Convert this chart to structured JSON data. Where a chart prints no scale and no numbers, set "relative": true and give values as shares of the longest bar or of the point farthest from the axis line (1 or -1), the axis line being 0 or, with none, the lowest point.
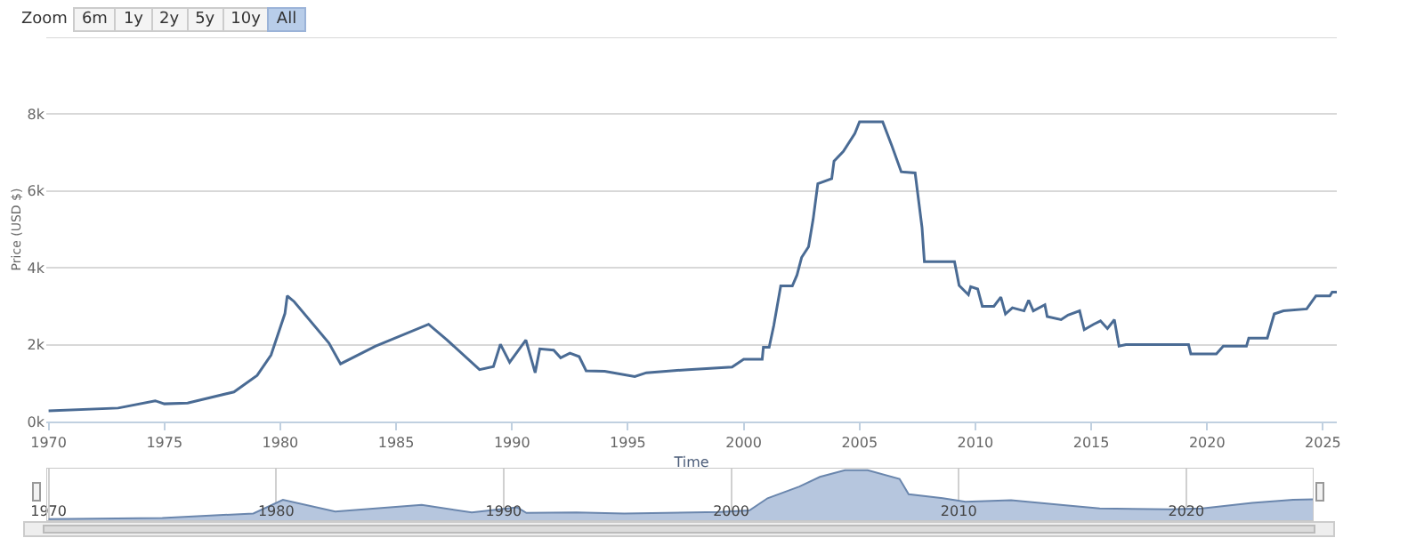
{
  "chart_data": [
    {
      "type": "line",
      "xlabel": "Time",
      "ylabel": "Price (USD $)",
      "annotations": [
        "Zoom",
        "6m",
        "1y",
        "2y",
        "5y",
        "10y",
        "All"
      ],
      "x": [
        1970,
        1973,
        1974.6,
        1975,
        1976,
        1978,
        1979,
        1979.6,
        1980.2,
        1980.3,
        1980.6,
        1982.1,
        1982.6,
        1984.1,
        1986.4,
        1987.2,
        1988.6,
        1989.2,
        1989.5,
        1989.9,
        1990.6,
        1991,
        1991.2,
        1991.8,
        1992.1,
        1992.5,
        1992.9,
        1993.2,
        1994,
        1995.3,
        1995.8,
        1997.6,
        1999.5,
        2000,
        2000.8,
        2000.85,
        2001.1,
        2001.3,
        2001.6,
        2002.1,
        2002.3,
        2002.5,
        2002.8,
        2003,
        2003.2,
        2003.8,
        2003.9,
        2004.3,
        2004.8,
        2005,
        2006,
        2006.4,
        2006.8,
        2007.4,
        2007.7,
        2007.8,
        2009.1,
        2009.3,
        2009.7,
        2009.8,
        2010.1,
        2010.3,
        2010.8,
        2011.1,
        2011.3,
        2011.6,
        2012.1,
        2012.3,
        2012.5,
        2013,
        2013.1,
        2013.7,
        2014,
        2014.5,
        2014.7,
        2015.1,
        2015.4,
        2015.7,
        2016,
        2016.2,
        2016.5,
        2019.2,
        2019.3,
        2020.4,
        2020.7,
        2021.7,
        2021.8,
        2022.6,
        2022.9,
        2023.3,
        2024.3,
        2024.7,
        2025.3,
        2025.4,
        2025.6
      ],
      "series": [
        {
          "color": "#4a6b94",
          "values": [
            280,
            350,
            540,
            460,
            480,
            770,
            1200,
            1730,
            2810,
            3270,
            3120,
            2040,
            1500,
            1960,
            2530,
            2120,
            1350,
            1430,
            2010,
            1540,
            2120,
            1270,
            1890,
            1860,
            1660,
            1780,
            1690,
            1320,
            1310,
            1170,
            1270,
            1350,
            1420,
            1620,
            1620,
            1930,
            1930,
            2500,
            3530,
            3530,
            3810,
            4270,
            4550,
            5270,
            6190,
            6320,
            6780,
            7030,
            7500,
            7800,
            7800,
            7170,
            6500,
            6470,
            5040,
            4160,
            4160,
            3540,
            3300,
            3510,
            3450,
            3000,
            3000,
            3240,
            2800,
            2960,
            2880,
            3160,
            2880,
            3040,
            2730,
            2650,
            2770,
            2880,
            2390,
            2530,
            2620,
            2420,
            2650,
            1960,
            2000,
            2000,
            1760,
            1760,
            1960,
            1960,
            2170,
            2170,
            2800,
            2880,
            2930,
            3270,
            3270,
            3370,
            3370
          ]
        }
      ],
      "xlim": [
        1969.9,
        2025.6
      ],
      "xticks": [
        1970,
        1975,
        1980,
        1985,
        1990,
        1995,
        2000,
        2005,
        2010,
        2015,
        2020,
        2025
      ],
      "ylim": [
        0,
        10000
      ],
      "yticks": [
        {
          "value": 0,
          "label": "0k"
        },
        {
          "value": 2000,
          "label": "2k"
        },
        {
          "value": 4000,
          "label": "4k"
        },
        {
          "value": 6000,
          "label": "6k"
        },
        {
          "value": 8000,
          "label": "8k"
        }
      ],
      "grid": "y",
      "marker": "none",
      "line_style": "solid"
    },
    {
      "type": "area",
      "relative": true,
      "tick_labels": "x",
      "grid": "x",
      "x": [
        1970,
        1975,
        1979,
        1980.3,
        1982.6,
        1986.4,
        1988.6,
        1990.6,
        1991,
        1993.2,
        1995.3,
        1999.5,
        2000.8,
        2001.6,
        2003,
        2003.9,
        2005,
        2006,
        2007.4,
        2007.8,
        2009.3,
        2010.3,
        2012.3,
        2014.7,
        2016.2,
        2019.3,
        2020.7,
        2022.9,
        2024.7,
        2025.6
      ],
      "series": [
        {
          "color": "#b6c6de",
          "values": [
            0.04,
            0.06,
            0.15,
            0.42,
            0.19,
            0.32,
            0.17,
            0.27,
            0.16,
            0.17,
            0.15,
            0.18,
            0.21,
            0.45,
            0.68,
            0.87,
            1,
            1,
            0.83,
            0.53,
            0.45,
            0.38,
            0.41,
            0.31,
            0.25,
            0.23,
            0.25,
            0.36,
            0.42,
            0.43
          ]
        }
      ],
      "xlim": [
        1969.9,
        2025.6
      ],
      "xticks": [
        1970,
        1980,
        1990,
        2000,
        2010,
        2020
      ]
    }
  ]
}
